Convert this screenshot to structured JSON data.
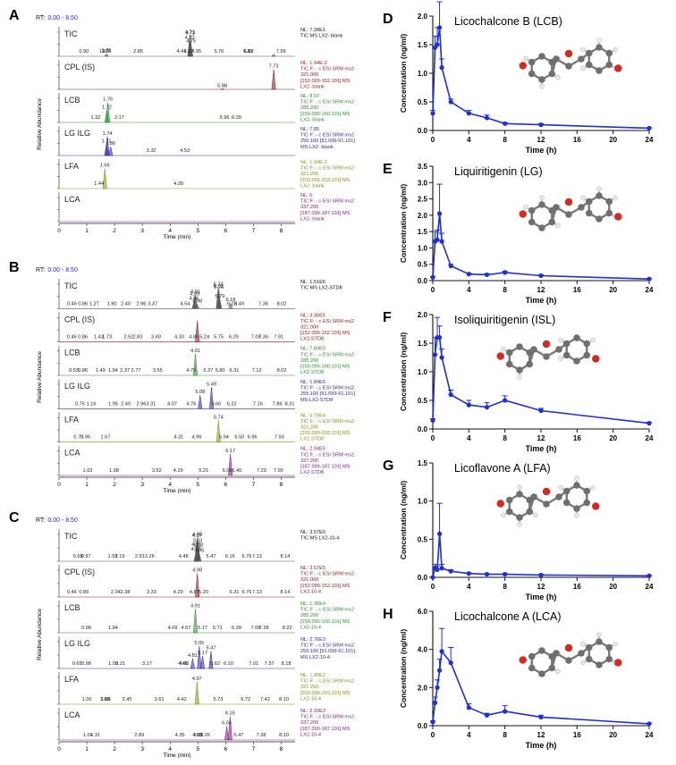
{
  "chart_data": [
    {
      "id": "A",
      "type": "chromatogram",
      "rt_label": "RT:",
      "rt_range": "0.00 - 8.50",
      "ylabel": "Relative Abundance",
      "xlabel": "Time (min)",
      "x_ticks": [
        "0",
        "1",
        "2",
        "3",
        "4",
        "5",
        "6",
        "7",
        "8"
      ],
      "traces": [
        {
          "label": "TIC",
          "color": "#555555",
          "info": [
            "NL: 7.28E1",
            "TIC  MS LX2- blank"
          ],
          "peaks": [
            {
              "t": 4.71,
              "h": 0.95
            },
            {
              "t": 4.73,
              "h": 0.9
            },
            {
              "t": 4.75,
              "h": 0.55
            },
            {
              "t": 4.7,
              "h": 0.7
            },
            {
              "t": 7.73,
              "h": 0.1
            },
            {
              "t": 1.71,
              "h": 0.12
            }
          ],
          "labels": [
            "0.90",
            "1.62",
            "1.71",
            "1.70",
            "2.85",
            "4.41",
            "4.67",
            "4.70",
            "4.71",
            "4.73",
            "4.75",
            "4.95",
            "5.76",
            "6.81",
            "6.83",
            "7.99"
          ]
        },
        {
          "label": "CPL (IS)",
          "color": "#8b1a1a",
          "info": [
            "NL: 1.94E-2",
            "TIC F: - c ESI SRM ms2",
            "321.000",
            "[152.099-152.101]  MS",
            "LX2- blank"
          ],
          "peaks": [
            {
              "t": 7.73,
              "h": 0.9
            },
            {
              "t": 5.88,
              "h": 0.03
            }
          ],
          "labels": [
            "7.73",
            "5.88"
          ]
        },
        {
          "label": "LCB",
          "color": "#2e8b2e",
          "info": [
            "NL: 8.97",
            "TIC F: - c ESI SRM ms2",
            "285.200",
            "[150.099-150.101]  MS",
            "LX2- blank"
          ],
          "peaks": [
            {
              "t": 1.76,
              "h": 0.9
            },
            {
              "t": 1.72,
              "h": 0.55
            }
          ],
          "labels": [
            "1.76",
            "1.72",
            "1.32",
            "2.17",
            "5.96",
            "6.39"
          ]
        },
        {
          "label": "LG  ILG",
          "color": "#2929a3",
          "info": [
            "NL: 7.85",
            "TIC F: - c ESI SRM ms2",
            "255.100 [91.099-91.101]",
            "MS LX2- blank"
          ],
          "peaks": [
            {
              "t": 1.74,
              "h": 0.85
            },
            {
              "t": 1.71,
              "h": 0.5
            },
            {
              "t": 1.86,
              "h": 0.4
            }
          ],
          "labels": [
            "1.74",
            "1.71",
            "1.86",
            "3.32",
            "4.53"
          ]
        },
        {
          "label": "LFA",
          "color": "#8b8b1a",
          "info": [
            "NL: 1.34E-2",
            "TIC F: - c ESI SRM ms2",
            "321.200",
            "[203.099-203.101]  MS",
            "LX2- blank"
          ],
          "peaks": [
            {
              "t": 1.65,
              "h": 0.9
            }
          ],
          "labels": [
            "1.65",
            "1.44",
            "4.30"
          ]
        },
        {
          "label": "LCA",
          "color": "#7a1a7a",
          "info": [
            "NL: 0",
            "TIC F: - c ESI SRM ms2",
            "337.200",
            "[187.099-187.101]  MS",
            "LX2- blank"
          ],
          "peaks": [],
          "labels": []
        }
      ]
    },
    {
      "id": "B",
      "type": "chromatogram",
      "rt_label": "RT:",
      "rt_range": "0.00 - 8.50",
      "ylabel": "Relative Abundance",
      "xlabel": "Time (min)",
      "x_ticks": [
        "0",
        "1",
        "2",
        "3",
        "4",
        "5",
        "6",
        "7",
        "8"
      ],
      "traces": [
        {
          "label": "TIC",
          "color": "#555555",
          "info": [
            "NL: 1.51E6",
            "TIC  MS LX2-STD8"
          ],
          "peaks": [
            {
              "t": 5.74,
              "h": 0.95
            },
            {
              "t": 5.73,
              "h": 0.85
            },
            {
              "t": 5.76,
              "h": 0.8
            },
            {
              "t": 4.91,
              "h": 0.6
            },
            {
              "t": 4.89,
              "h": 0.5
            },
            {
              "t": 5.79,
              "h": 0.4
            },
            {
              "t": 6.18,
              "h": 0.25
            },
            {
              "t": 4.86,
              "h": 0.3
            },
            {
              "t": 4.98,
              "h": 0.2
            }
          ],
          "labels": [
            "0.46",
            "0.86",
            "1.27",
            "1.90",
            "2.40",
            "2.96",
            "3.37",
            "4.54",
            "4.86",
            "4.89",
            "4.91",
            "4.98",
            "5.73",
            "5.74",
            "5.76",
            "5.79",
            "6.18",
            "6.23",
            "6.49",
            "7.36",
            "8.02"
          ]
        },
        {
          "label": "CPL (IS)",
          "color": "#8b1a1a",
          "info": [
            "NL: 3.36E5",
            "TIC F: - c ESI SRM ms2",
            "321.000",
            "[152.099-152.101]  MS",
            "LX2-STD8"
          ],
          "peaks": [
            {
              "t": 4.98,
              "h": 0.95
            }
          ],
          "labels": [
            "0.46",
            "0.86",
            "1.43",
            "1.73",
            "2.51",
            "2.83",
            "3.49",
            "4.33",
            "4.85",
            "5.24",
            "5.75",
            "6.29",
            "7.09",
            "7.36",
            "7.91"
          ]
        },
        {
          "label": "LCB",
          "color": "#2e8b2e",
          "info": [
            "NL: 7.89E5",
            "TIC F: - c ESI SRM ms2",
            "285.200",
            "[150.099-150.101]  MS",
            "LX2-STD8"
          ],
          "peaks": [
            {
              "t": 4.91,
              "h": 0.95
            }
          ],
          "labels": [
            "4.91",
            "0.53",
            "0.86",
            "1.49",
            "1.94",
            "2.37",
            "2.77",
            "3.55",
            "4.76",
            "5.37",
            "5.80",
            "6.31",
            "7.12",
            "8.02"
          ]
        },
        {
          "label": "LG  ILG",
          "color": "#2929a3",
          "info": [
            "NL: 1.84E5",
            "TIC F: - c ESI SRM ms2",
            "255.100 [91.099-91.101]",
            "MS LX2-STD8"
          ],
          "peaks": [
            {
              "t": 5.49,
              "h": 0.95
            },
            {
              "t": 5.08,
              "h": 0.6
            }
          ],
          "labels": [
            "5.49",
            "5.08",
            "0.75",
            "1.16",
            "1.95",
            "2.40",
            "2.96",
            "3.31",
            "4.07",
            "4.76",
            "5.66",
            "6.22",
            "7.16",
            "7.86",
            "8.31"
          ]
        },
        {
          "label": "LFA",
          "color": "#8b8b1a",
          "info": [
            "NL: 5.79E4",
            "TIC F: - c ESI SRM ms2",
            "321.200",
            "[203.099-203.101]  MS",
            "LX2-STD8"
          ],
          "peaks": [
            {
              "t": 5.74,
              "h": 0.95
            }
          ],
          "labels": [
            "5.74",
            "0.70",
            "0.95",
            "1.67",
            "4.31",
            "4.96",
            "5.94",
            "6.50",
            "6.96",
            "7.93"
          ]
        },
        {
          "label": "LCA",
          "color": "#7a1a7a",
          "info": [
            "NL: 2.94E5",
            "TIC F: - c ESI SRM ms2",
            "337.200",
            "[187.099-187.101]  MS",
            "LX2-STD8"
          ],
          "peaks": [
            {
              "t": 6.17,
              "h": 0.95
            }
          ],
          "labels": [
            "6.17",
            "1.03",
            "1.98",
            "3.52",
            "4.29",
            "5.21",
            "6.06",
            "6.40",
            "7.29",
            "7.90"
          ]
        }
      ]
    },
    {
      "id": "C",
      "type": "chromatogram",
      "rt_label": "RT:",
      "rt_range": "0.00 - 8.50",
      "ylabel": "Relative Abundance",
      "xlabel": "Time (min)",
      "x_ticks": [
        "0",
        "1",
        "2",
        "3",
        "4",
        "5",
        "6",
        "7",
        "8"
      ],
      "traces": [
        {
          "label": "TIC",
          "color": "#555555",
          "info": [
            "NL: 3.57E5",
            "TIC  MS LX2-10-4"
          ],
          "peaks": [
            {
              "t": 4.98,
              "h": 0.95
            },
            {
              "t": 4.97,
              "h": 0.9
            },
            {
              "t": 5.01,
              "h": 0.7
            },
            {
              "t": 4.95,
              "h": 0.55
            },
            {
              "t": 5.02,
              "h": 0.5
            },
            {
              "t": 4.93,
              "h": 0.35
            },
            {
              "t": 5.05,
              "h": 0.3
            }
          ],
          "labels": [
            "0.68",
            "0.97",
            "1.93",
            "2.19",
            "2.91",
            "3.26",
            "4.48",
            "4.93",
            "4.95",
            "4.97",
            "4.98",
            "5.01",
            "5.02",
            "5.05",
            "5.47",
            "6.16",
            "6.76",
            "7.13",
            "8.14"
          ]
        },
        {
          "label": "CPL (IS)",
          "color": "#8b1a1a",
          "info": [
            "NL: 3.57E5",
            "TIC F: - c ESI SRM ms2",
            "321.000",
            "[152.099-152.101]  MS",
            "LX2-10-4"
          ],
          "peaks": [
            {
              "t": 4.98,
              "h": 0.95
            }
          ],
          "labels": [
            "4.98",
            "0.46",
            "0.89",
            "2.04",
            "2.38",
            "3.33",
            "4.29",
            "4.87",
            "5.20",
            "6.31",
            "6.76",
            "7.13",
            "8.14"
          ]
        },
        {
          "label": "LCB",
          "color": "#2e8b2e",
          "info": [
            "NL: 1.36E4",
            "TIC F: - c ESI SRM ms2",
            "285.200",
            "[150.099-150.101]  MS",
            "LX2-10-4"
          ],
          "peaks": [
            {
              "t": 4.91,
              "h": 0.95
            }
          ],
          "labels": [
            "4.91",
            "0.98",
            "1.94",
            "4.09",
            "4.57",
            "5.17",
            "5.71",
            "6.39",
            "7.08",
            "7.38",
            "8.22"
          ]
        },
        {
          "label": "LG  ILG",
          "color": "#2929a3",
          "info": [
            "NL: 2.76E3",
            "TIC F: - c ESI SRM ms2",
            "255.100 [91.099-91.101]",
            "MS LX2-10-4"
          ],
          "peaks": [
            {
              "t": 5.05,
              "h": 0.9
            },
            {
              "t": 5.47,
              "h": 0.7
            },
            {
              "t": 4.81,
              "h": 0.4
            },
            {
              "t": 5.17,
              "h": 0.5
            }
          ],
          "labels": [
            "5.05",
            "5.17",
            "5.47",
            "4.81",
            "0.65",
            "0.98",
            "1.95",
            "2.21",
            "3.17",
            "4.46",
            "4.50",
            "5.62",
            "6.10",
            "7.01",
            "7.57",
            "8.18"
          ]
        },
        {
          "label": "LFA",
          "color": "#8b8b1a",
          "info": [
            "NL: 1.90E2",
            "TIC F: - c ESI SRM ms2",
            "321.200",
            "[203.099-203.101]  MS",
            "LX2-10-4"
          ],
          "peaks": [
            {
              "t": 4.97,
              "h": 0.9
            }
          ],
          "labels": [
            "4.97",
            "1.00",
            "1.65",
            "1.68",
            "2.45",
            "3.61",
            "4.42",
            "5.73",
            "6.72",
            "7.42",
            "8.10"
          ]
        },
        {
          "label": "LCA",
          "color": "#7a1a7a",
          "info": [
            "NL: 2.10E3",
            "TIC F: - c ESI SRM ms2",
            "337.200",
            "[187.099-187.101]  MS",
            "LX2-10-4"
          ],
          "peaks": [
            {
              "t": 6.16,
              "h": 0.95
            },
            {
              "t": 6.04,
              "h": 0.55
            }
          ],
          "labels": [
            "6.16",
            "6.04",
            "1.04",
            "1.31",
            "2.89",
            "4.35",
            "4.98",
            "5.02",
            "5.26",
            "6.47",
            "7.28",
            "8.10"
          ]
        }
      ]
    },
    {
      "id": "D",
      "type": "line",
      "title": "Licochalcone B (LCB)",
      "xlabel": "Time (h)",
      "ylabel": "Concentration (ng/ml)",
      "ylim": [
        0,
        2.0
      ],
      "yticks": [
        "0.0",
        "0.5",
        "1.0",
        "1.5",
        "2.0"
      ],
      "xlim": [
        0,
        24
      ],
      "xticks": [
        "0",
        "4",
        "8",
        "12",
        "16",
        "20",
        "24"
      ],
      "color": "#1f2fd6",
      "x": [
        0,
        0.25,
        0.5,
        0.75,
        1,
        2,
        4,
        6,
        8,
        12,
        24
      ],
      "y": [
        0.3,
        1.45,
        1.5,
        1.8,
        1.1,
        0.5,
        0.3,
        0.22,
        0.12,
        0.1,
        0.04
      ],
      "err": [
        0.05,
        0.2,
        0.3,
        0.45,
        0.15,
        0.05,
        0.05,
        0.05,
        0.02,
        0.02,
        0.01
      ]
    },
    {
      "id": "E",
      "type": "line",
      "title": "Liquiritigenin (LG)",
      "xlabel": "Time (h)",
      "ylabel": "Concentration (ng/ml)",
      "ylim": [
        0,
        3.5
      ],
      "yticks": [
        "0.0",
        "0.5",
        "1.0",
        "1.5",
        "2.0",
        "2.5",
        "3.0",
        "3.5"
      ],
      "xlim": [
        0,
        24
      ],
      "xticks": [
        "0",
        "4",
        "8",
        "12",
        "16",
        "20",
        "24"
      ],
      "color": "#1f2fd6",
      "x": [
        0,
        0.25,
        0.5,
        0.75,
        1,
        2,
        4,
        6,
        8,
        12,
        24
      ],
      "y": [
        0.1,
        1.2,
        1.25,
        2.05,
        1.2,
        0.45,
        0.2,
        0.18,
        0.25,
        0.15,
        0.05
      ],
      "err": [
        0.02,
        0.3,
        0.3,
        0.9,
        0.25,
        0.05,
        0.03,
        0.03,
        0.04,
        0.03,
        0.01
      ]
    },
    {
      "id": "F",
      "type": "line",
      "title": "Isoliquiritigenin (ISL)",
      "xlabel": "Time (h)",
      "ylabel": "Concentration (ng/ml)",
      "ylim": [
        0,
        2.0
      ],
      "yticks": [
        "0.0",
        "0.5",
        "1.0",
        "1.5",
        "2.0"
      ],
      "xlim": [
        0,
        24
      ],
      "xticks": [
        "0",
        "4",
        "8",
        "12",
        "16",
        "20",
        "24"
      ],
      "color": "#1f2fd6",
      "x": [
        0,
        0.25,
        0.5,
        0.75,
        1,
        2,
        4,
        6,
        8,
        12,
        24
      ],
      "y": [
        0.15,
        1.3,
        1.6,
        1.6,
        1.25,
        0.6,
        0.42,
        0.38,
        0.5,
        0.32,
        0.1
      ],
      "err": [
        0.03,
        0.3,
        0.35,
        0.2,
        0.15,
        0.08,
        0.08,
        0.08,
        0.08,
        0.04,
        0.02
      ]
    },
    {
      "id": "G",
      "type": "line",
      "title": "Licoflavone A (LFA)",
      "xlabel": "Time (h)",
      "ylabel": "Concentration (ng/ml)",
      "ylim": [
        0,
        1.5
      ],
      "yticks": [
        "0.0",
        "0.5",
        "1.0",
        "1.5"
      ],
      "xlim": [
        0,
        24
      ],
      "xticks": [
        "0",
        "4",
        "8",
        "12",
        "16",
        "20",
        "24"
      ],
      "color": "#1f2fd6",
      "x": [
        0,
        0.25,
        0.5,
        0.75,
        1,
        2,
        4,
        6,
        8,
        12,
        24
      ],
      "y": [
        0.0,
        0.12,
        0.1,
        0.57,
        0.12,
        0.08,
        0.05,
        0.04,
        0.04,
        0.03,
        0.02
      ],
      "err": [
        0.0,
        0.05,
        0.05,
        0.4,
        0.05,
        0.02,
        0.01,
        0.01,
        0.01,
        0.01,
        0.005
      ]
    },
    {
      "id": "H",
      "type": "line",
      "title": "Licochalcone A (LCA)",
      "xlabel": "Time (h)",
      "ylabel": "Concentration (ng/ml)",
      "ylim": [
        0,
        6.0
      ],
      "yticks": [
        "0.0",
        "2.0",
        "4.0",
        "6.0"
      ],
      "xlim": [
        0,
        24
      ],
      "xticks": [
        "0",
        "4",
        "8",
        "12",
        "16",
        "20",
        "24"
      ],
      "color": "#1f2fd6",
      "x": [
        0,
        0.25,
        0.5,
        0.75,
        1,
        2,
        4,
        6,
        8,
        12,
        24
      ],
      "y": [
        0.2,
        1.2,
        2.0,
        2.9,
        3.9,
        3.3,
        0.95,
        0.55,
        0.75,
        0.45,
        0.1
      ],
      "err": [
        0.05,
        0.3,
        0.4,
        0.6,
        1.2,
        0.8,
        0.2,
        0.1,
        0.3,
        0.1,
        0.03
      ]
    }
  ]
}
